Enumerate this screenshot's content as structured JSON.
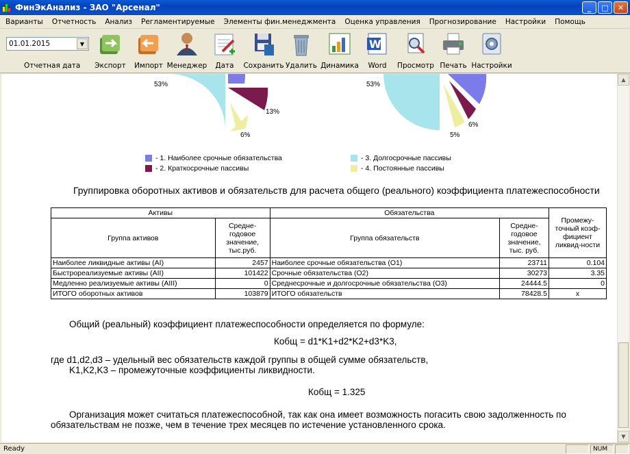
{
  "window": {
    "title": "ФинЭкАнализ - ЗАО \"Арсенал\"",
    "min": "_",
    "max": "□",
    "close": "✕"
  },
  "menu": [
    "Варианты",
    "Отчетность",
    "Анализ",
    "Регламентируемые",
    "Элементы фин.менеджмента",
    "Оценка управления",
    "Прогнозирование",
    "Настройки",
    "Помощь"
  ],
  "toolbar": {
    "date_value": "01.01.2015",
    "date_label": "Отчетная дата",
    "buttons": [
      {
        "label": "Экспорт",
        "icon": "export-icon"
      },
      {
        "label": "Импорт",
        "icon": "import-icon"
      },
      {
        "label": "Менеджер",
        "icon": "manager-icon"
      },
      {
        "label": "Дата",
        "icon": "date-icon"
      },
      {
        "label": "Сохранить",
        "icon": "save-icon"
      },
      {
        "label": "Удалить",
        "icon": "delete-icon"
      },
      {
        "label": "Динамика",
        "icon": "dynamics-icon"
      },
      {
        "label": "Word",
        "icon": "word-icon"
      },
      {
        "label": "Просмотр",
        "icon": "preview-icon"
      },
      {
        "label": "Печать",
        "icon": "print-icon"
      },
      {
        "label": "Настройки",
        "icon": "settings-icon"
      }
    ]
  },
  "colors": {
    "c1": "#7b7bea",
    "c2": "#7b1a4c",
    "c3": "#a8e4ec",
    "c4": "#eeeea0"
  },
  "chart_data": [
    {
      "type": "pie",
      "slices": [
        {
          "label": "- 1. Наиболее срочные обязательства",
          "pct_label": ""
        },
        {
          "label": "- 2. Краткосрочные пассивы",
          "pct_label": "13%"
        },
        {
          "label": "- 4. Постоянные пассивы",
          "pct_label": "6%"
        },
        {
          "label": "- 3. Долгосрочные пассивы",
          "pct_label": "53%"
        }
      ]
    },
    {
      "type": "pie",
      "slices": [
        {
          "label": "- 1. Наиболее срочные обязательства",
          "pct_label": ""
        },
        {
          "label": "- 2. Краткосрочные пассивы",
          "pct_label": "6%"
        },
        {
          "label": "- 4. Постоянные пассивы",
          "pct_label": "5%"
        },
        {
          "label": "- 3. Долгосрочные пассивы",
          "pct_label": "53%"
        }
      ]
    }
  ],
  "pie1": {
    "p53": "53%",
    "p13": "13%",
    "p6": "6%"
  },
  "pie2": {
    "p53": "53%",
    "p6": "6%",
    "p5": "5%"
  },
  "legend": {
    "l1": "- 1. Наиболее срочные обязательства",
    "l2": "- 2. Краткосрочные пассивы",
    "l3": "- 3. Долгосрочные пассивы",
    "l4": "- 4. Постоянные пассивы"
  },
  "heading": "Группировка оборотных активов и обязательств для расчета общего (реального) коэффициента платежеспособности",
  "table": {
    "h_assets": "Активы",
    "h_liab": "Обязательства",
    "h_ratio": "Промежу-точный коэф-фициент ликвид-ности",
    "h_asset_group": "Группа активов",
    "h_asset_avg": "Средне-годовое значение, тыс.руб.",
    "h_liab_group": "Группа обязательств",
    "h_liab_avg": "Средне-годовое значение, тыс. руб.",
    "rows": [
      {
        "a": "Наиболее ликвидные активы (AI)",
        "av": "2457",
        "l": "Наиболее срочные обязательства (O1)",
        "lv": "23711",
        "k": "0.104"
      },
      {
        "a": "Быстрореализуемые активы (AII)",
        "av": "101422",
        "l": "Срочные обязательства (O2)",
        "lv": "30273",
        "k": "3.35"
      },
      {
        "a": "Медленно реализуемые активы (AIII)",
        "av": "0",
        "l": "Среднесрочные и долгосрочные обязательства (O3)",
        "lv": "24444.5",
        "k": "0"
      },
      {
        "a": "ИТОГО оборотных активов",
        "av": "103879",
        "l": "ИТОГО обязательств",
        "lv": "78428.5",
        "k": "x"
      }
    ]
  },
  "text": {
    "p1": "Общий (реальный) коэффициент платежеспособности определяется по формуле:",
    "formula": "Кобщ = d1*K1+d2*K2+d3*K3,",
    "p2": "где d1,d2,d3 – удельный вес обязательств каждой группы в общей сумме обязательств,",
    "p3": "K1,K2,K3 – промежуточные коэффициенты ликвидности.",
    "result": "Кобщ = 1.325",
    "p4a": "Организация может считаться платежеспособной, так как она имеет возможность погасить свою задолженность по",
    "p4b": "обязательствам не позже, чем в течение трех месяцев по истечение установленного срока."
  },
  "status": {
    "ready": "Ready",
    "num": "NUM"
  }
}
